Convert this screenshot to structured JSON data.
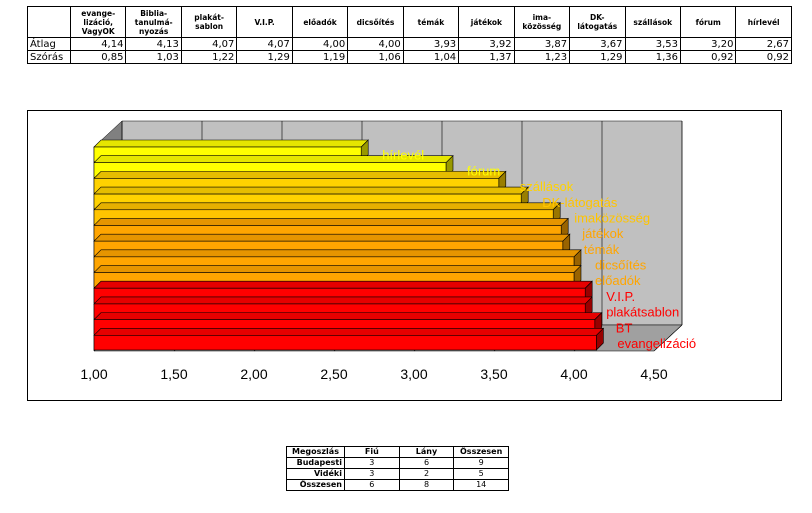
{
  "stats_table": {
    "headers": [
      "",
      "evange-\nlizáció,\nVagyOK",
      "Biblia-\ntanulmá-\nnyozás",
      "plakát-\nsablon",
      "V.I.P.",
      "előadók",
      "dicsőítés",
      "témák",
      "játékok",
      "ima-\nközösség",
      "DK-\nlátogatás",
      "szállások",
      "fórum",
      "hírlevél"
    ],
    "rows": [
      {
        "label": "Átlag",
        "values": [
          "4,14",
          "4,13",
          "4,07",
          "4,07",
          "4,00",
          "4,00",
          "3,93",
          "3,92",
          "3,87",
          "3,67",
          "3,53",
          "3,20",
          "2,67"
        ]
      },
      {
        "label": "Szórás",
        "values": [
          "0,85",
          "1,03",
          "1,22",
          "1,29",
          "1,19",
          "1,06",
          "1,04",
          "1,37",
          "1,23",
          "1,29",
          "1,36",
          "0,92",
          "0,92"
        ]
      }
    ]
  },
  "chart_data": {
    "type": "bar",
    "orientation": "horizontal",
    "style": "3d",
    "xlim": [
      1.0,
      4.5
    ],
    "xticks": [
      "1,00",
      "1,50",
      "2,00",
      "2,50",
      "3,00",
      "3,50",
      "4,00",
      "4,50"
    ],
    "grid": true,
    "categories": [
      "hírlevél",
      "fórum",
      "szállások",
      "DK-látogatás",
      "imaközösség",
      "játékok",
      "témák",
      "dicsőítés",
      "előadók",
      "V.I.P.",
      "plakátsablon",
      "BT",
      "evangelizáció"
    ],
    "values": [
      2.67,
      3.2,
      3.53,
      3.67,
      3.87,
      3.92,
      3.93,
      4.0,
      4.0,
      4.07,
      4.07,
      4.13,
      4.14
    ],
    "colors": [
      "#ffff00",
      "#ffff00",
      "#ffd200",
      "#ffd200",
      "#ffc400",
      "#ffa500",
      "#ffa500",
      "#ffa500",
      "#ffa500",
      "#ff0000",
      "#ff0000",
      "#ff0000",
      "#ff0000"
    ],
    "label_colors": [
      "#ffff00",
      "#ffff00",
      "#ffd200",
      "#ffc400",
      "#ffc400",
      "#ffa500",
      "#ffa500",
      "#ffa500",
      "#ffa500",
      "#ff0000",
      "#ff0000",
      "#ff0000",
      "#ff0000"
    ]
  },
  "dist_table": {
    "headers": [
      "Megoszlás",
      "Fiú",
      "Lány",
      "Összesen"
    ],
    "rows": [
      {
        "label": "Budapesti",
        "values": [
          "3",
          "6",
          "9"
        ]
      },
      {
        "label": "Vidéki",
        "values": [
          "3",
          "2",
          "5"
        ]
      },
      {
        "label": "Összesen",
        "values": [
          "6",
          "8",
          "14"
        ]
      }
    ]
  }
}
